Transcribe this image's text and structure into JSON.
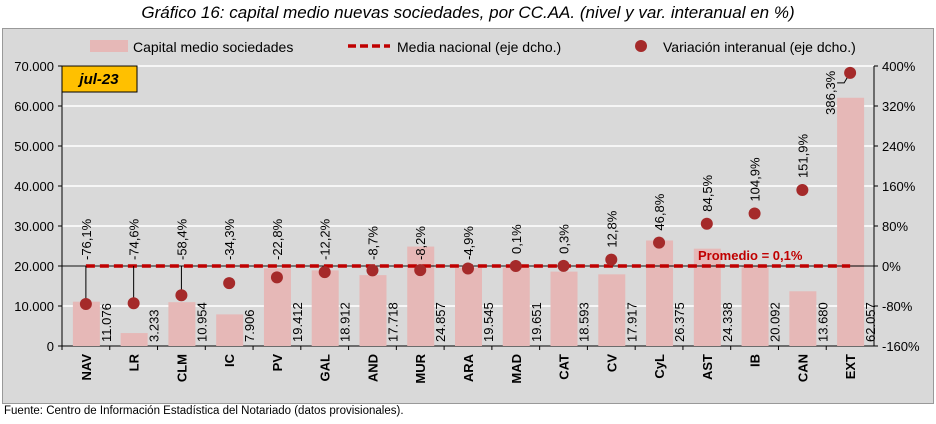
{
  "chart_data": {
    "type": "bar",
    "title": "Gráfico 16: capital medio nuevas sociedades, por CC.AA. (nivel y var. interanual en %)",
    "badge": "jul-23",
    "categories": [
      "NAV",
      "LR",
      "CLM",
      "IC",
      "PV",
      "GAL",
      "AND",
      "MUR",
      "ARA",
      "MAD",
      "CAT",
      "CV",
      "CyL",
      "AST",
      "IB",
      "CAN",
      "EXT"
    ],
    "series": [
      {
        "name": "Capital medio sociedades",
        "type": "bar",
        "axis": "left",
        "color": "#e6b8b7",
        "values": [
          11076,
          3233,
          10954,
          7906,
          19412,
          18912,
          17718,
          24857,
          19545,
          19651,
          18593,
          17917,
          26375,
          24338,
          20092,
          13680,
          62057
        ],
        "labels": [
          "11.076",
          "3.233",
          "10.954",
          "7.906",
          "19.412",
          "18.912",
          "17.718",
          "24.857",
          "19.545",
          "19.651",
          "18.593",
          "17.917",
          "26.375",
          "24.338",
          "20.092",
          "13.680",
          "62.057"
        ]
      },
      {
        "name": "Media nacional (eje dcho.)",
        "type": "line",
        "axis": "right",
        "color": "#c00000",
        "value": 0.1
      },
      {
        "name": "Variación interanual (eje dcho.)",
        "type": "scatter",
        "axis": "right",
        "color": "#a52a2a",
        "values": [
          -76.1,
          -74.6,
          -58.4,
          -34.3,
          -22.8,
          -12.2,
          -8.7,
          -8.2,
          -4.9,
          0.1,
          0.3,
          12.8,
          46.8,
          84.5,
          104.9,
          151.9,
          386.3
        ],
        "labels": [
          "-76,1%",
          "-74,6%",
          "-58,4%",
          "-34,3%",
          "-22,8%",
          "-12,2%",
          "-8,7%",
          "-8,2%",
          "-4,9%",
          "0,1%",
          "0,3%",
          "12,8%",
          "46,8%",
          "84,5%",
          "104,9%",
          "151,9%",
          "386,3%"
        ]
      }
    ],
    "annotation": "Promedio = 0,1%",
    "ylim_left": [
      0,
      70000
    ],
    "yticks_left": [
      "0",
      "10.000",
      "20.000",
      "30.000",
      "40.000",
      "50.000",
      "60.000",
      "70.000"
    ],
    "ylim_right": [
      -160,
      400
    ],
    "yticks_right": [
      "-160%",
      "-80%",
      "0%",
      "80%",
      "160%",
      "240%",
      "320%",
      "400%"
    ],
    "grid": true,
    "legend": "top"
  },
  "footer": "Fuente: Centro de Información Estadística del Notariado (datos provisionales)."
}
